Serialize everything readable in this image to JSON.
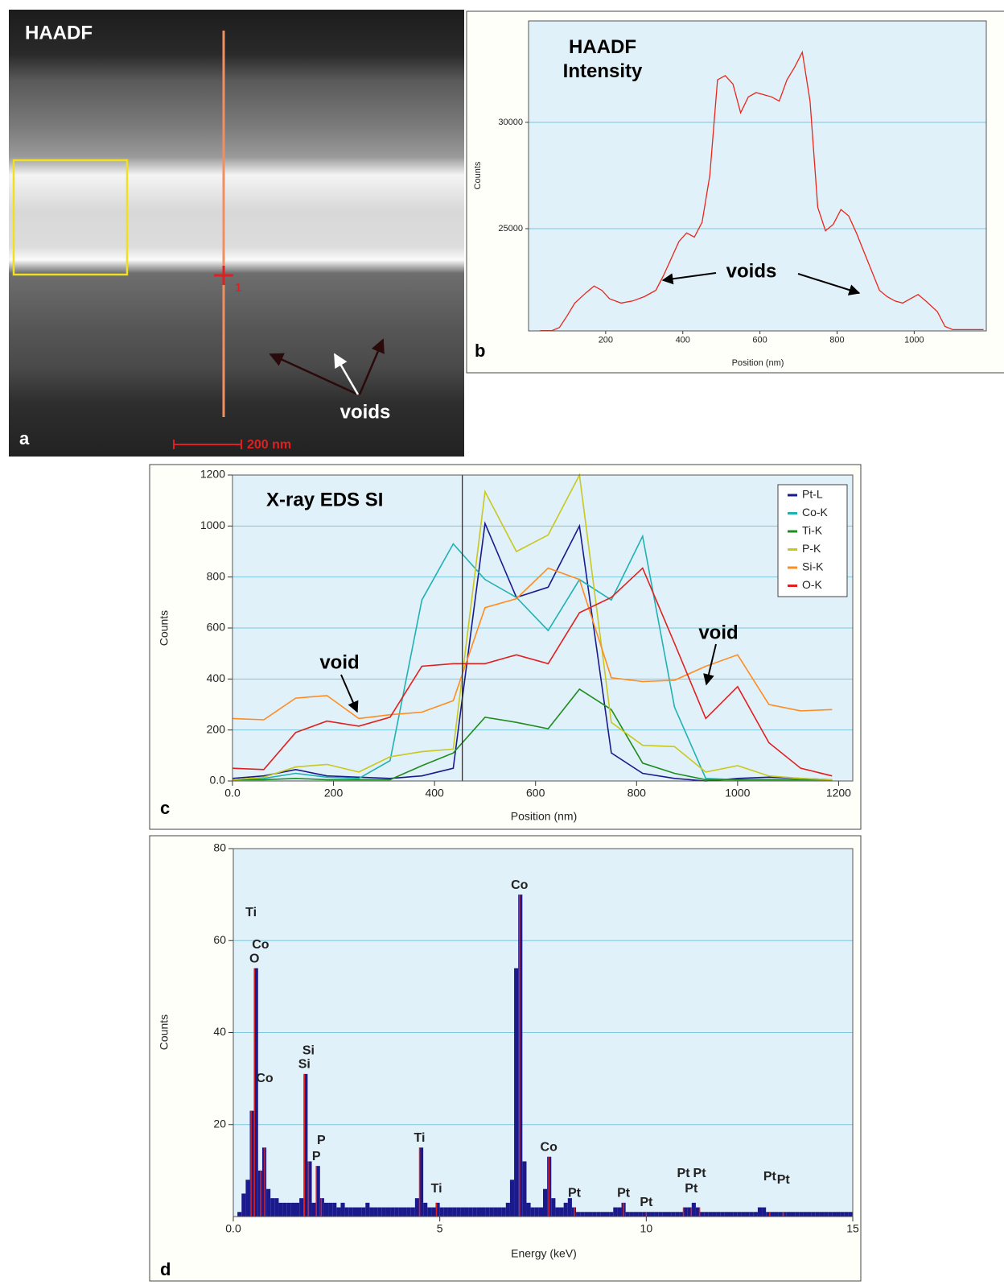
{
  "image": {
    "title": "HAADF",
    "panel": "a",
    "marker": "1",
    "scale_bar": "200 nm",
    "annotation": "voids"
  },
  "chart_data": [
    {
      "type": "line",
      "panel": "b",
      "title": "HAADF Intensity",
      "x_label": "Position (nm)",
      "y_label": "Counts",
      "annotations": [
        "voids"
      ],
      "color": "#e8261a",
      "grid": true,
      "xlim": [
        0,
        1187
      ],
      "ylim": [
        20190,
        34770
      ],
      "xticks": [
        200,
        400,
        600,
        800,
        1000
      ],
      "yticks": [
        25000,
        30000
      ],
      "x": [
        30,
        60,
        80,
        100,
        120,
        150,
        170,
        190,
        210,
        240,
        270,
        300,
        330,
        350,
        370,
        390,
        410,
        430,
        450,
        470,
        490,
        510,
        530,
        550,
        570,
        590,
        610,
        630,
        650,
        670,
        690,
        710,
        730,
        750,
        770,
        790,
        810,
        830,
        850,
        870,
        890,
        910,
        930,
        950,
        970,
        990,
        1010,
        1030,
        1060,
        1080,
        1100,
        1150,
        1180
      ],
      "values": [
        20200,
        20200,
        20350,
        20900,
        21500,
        22000,
        22300,
        22100,
        21700,
        21500,
        21600,
        21800,
        22100,
        22800,
        23600,
        24400,
        24800,
        24600,
        25300,
        27500,
        32000,
        32200,
        31800,
        30450,
        31200,
        31400,
        31300,
        31200,
        31000,
        32000,
        32600,
        33300,
        31000,
        26000,
        24900,
        25200,
        25900,
        25600,
        24800,
        23900,
        23000,
        22100,
        21800,
        21600,
        21500,
        21700,
        21900,
        21600,
        21100,
        20400,
        20250,
        20250,
        20250
      ]
    },
    {
      "type": "line",
      "panel": "c",
      "title": "X-ray EDS SI",
      "x_label": "Position (nm)",
      "y_label": "Counts",
      "annotations": [
        "void",
        "void"
      ],
      "grid": true,
      "legend": "upper right",
      "cursor": 455,
      "xlim": [
        0,
        1228
      ],
      "ylim": [
        0,
        1200
      ],
      "xticks": [
        {
          "value": 0,
          "label": "0.0"
        },
        200,
        400,
        600,
        800,
        1000,
        1200
      ],
      "yticks": [
        {
          "value": 0,
          "label": "0.0"
        },
        200,
        400,
        600,
        800,
        1000,
        1200
      ],
      "x": [
        0,
        62,
        125,
        187,
        250,
        312,
        375,
        437,
        500,
        562,
        625,
        687,
        750,
        812,
        875,
        937,
        1000,
        1062,
        1125,
        1187
      ],
      "series": [
        {
          "name": "Pt-L",
          "color": "#1a1a8c",
          "values": [
            10,
            20,
            45,
            20,
            15,
            10,
            20,
            50,
            1010,
            720,
            760,
            1000,
            110,
            30,
            10,
            0,
            10,
            15,
            10,
            5
          ]
        },
        {
          "name": "Co-K",
          "color": "#20b2b2",
          "values": [
            5,
            10,
            30,
            15,
            10,
            80,
            710,
            930,
            790,
            720,
            590,
            790,
            710,
            960,
            290,
            10,
            5,
            5,
            5,
            5
          ]
        },
        {
          "name": "Ti-K",
          "color": "#1e8c1e",
          "values": [
            5,
            5,
            10,
            5,
            5,
            5,
            60,
            110,
            250,
            230,
            205,
            360,
            280,
            70,
            30,
            5,
            5,
            5,
            5,
            5
          ]
        },
        {
          "name": "P-K",
          "color": "#c8c81e",
          "values": [
            5,
            15,
            55,
            65,
            35,
            95,
            115,
            125,
            1135,
            900,
            965,
            1200,
            230,
            140,
            135,
            35,
            60,
            20,
            10,
            5
          ]
        },
        {
          "name": "Si-K",
          "color": "#ff8c1e",
          "values": [
            245,
            240,
            325,
            335,
            245,
            260,
            270,
            315,
            680,
            715,
            835,
            790,
            405,
            390,
            395,
            450,
            495,
            300,
            275,
            280
          ]
        },
        {
          "name": "O-K",
          "color": "#e0201e",
          "values": [
            50,
            45,
            190,
            235,
            215,
            250,
            450,
            460,
            460,
            495,
            460,
            660,
            720,
            835,
            540,
            245,
            370,
            150,
            50,
            20
          ]
        }
      ]
    },
    {
      "type": "histogram",
      "panel": "d",
      "x_label": "Energy (keV)",
      "y_label": "Counts",
      "color": "#1a1a8c",
      "peak_color": "#e0201e",
      "grid": true,
      "xlim": [
        0,
        15
      ],
      "ylim": [
        0,
        80
      ],
      "xticks": [
        {
          "value": 0,
          "label": "0.0"
        },
        5,
        10,
        15
      ],
      "yticks": [
        20,
        40,
        60,
        80
      ],
      "bins": [
        0,
        0.1,
        0.2,
        0.3,
        0.4,
        0.5,
        0.6,
        0.7,
        0.8,
        0.9,
        1,
        1.1,
        1.2,
        1.3,
        1.4,
        1.5,
        1.6,
        1.7,
        1.8,
        1.9,
        2,
        2.1,
        2.2,
        2.3,
        2.4,
        2.5,
        2.6,
        2.7,
        2.8,
        2.9,
        3,
        3.1,
        3.2,
        3.3,
        3.4,
        3.5,
        3.6,
        3.7,
        3.8,
        3.9,
        4,
        4.1,
        4.2,
        4.3,
        4.4,
        4.5,
        4.6,
        4.7,
        4.8,
        4.9,
        5,
        5.1,
        5.2,
        5.3,
        5.4,
        5.5,
        5.6,
        5.7,
        5.8,
        5.9,
        6,
        6.1,
        6.2,
        6.3,
        6.4,
        6.5,
        6.6,
        6.7,
        6.8,
        6.9,
        7,
        7.1,
        7.2,
        7.3,
        7.4,
        7.5,
        7.6,
        7.7,
        7.8,
        7.9,
        8,
        8.1,
        8.2,
        8.3,
        8.4,
        8.5,
        8.6,
        8.7,
        8.8,
        8.9,
        9,
        9.1,
        9.2,
        9.3,
        9.4,
        9.5,
        9.6,
        9.7,
        9.8,
        9.9,
        10,
        10.1,
        10.2,
        10.3,
        10.4,
        10.5,
        10.6,
        10.7,
        10.8,
        10.9,
        11,
        11.1,
        11.2,
        11.3,
        11.4,
        11.5,
        11.6,
        11.7,
        11.8,
        11.9,
        12,
        12.1,
        12.2,
        12.3,
        12.4,
        12.5,
        12.6,
        12.7,
        12.8,
        12.9,
        13,
        13.1,
        13.2,
        13.3,
        13.4,
        13.5,
        13.6,
        13.7,
        13.8,
        13.9,
        14,
        14.1,
        14.2,
        14.3,
        14.4,
        14.5,
        14.6,
        14.7,
        14.8,
        14.9,
        15
      ],
      "values": [
        0,
        1,
        5,
        8,
        23,
        54,
        10,
        15,
        6,
        4,
        4,
        3,
        3,
        3,
        3,
        3,
        4,
        31,
        12,
        3,
        11,
        4,
        3,
        3,
        3,
        2,
        3,
        2,
        2,
        2,
        2,
        2,
        3,
        2,
        2,
        2,
        2,
        2,
        2,
        2,
        2,
        2,
        2,
        2,
        4,
        15,
        3,
        2,
        2,
        3,
        2,
        2,
        2,
        2,
        2,
        2,
        2,
        2,
        2,
        2,
        2,
        2,
        2,
        2,
        2,
        2,
        3,
        8,
        54,
        70,
        12,
        3,
        2,
        2,
        2,
        6,
        13,
        4,
        2,
        2,
        3,
        4,
        2,
        1,
        1,
        1,
        1,
        1,
        1,
        1,
        1,
        1,
        2,
        2,
        3,
        1,
        1,
        1,
        1,
        1,
        1,
        1,
        1,
        1,
        1,
        1,
        1,
        1,
        1,
        2,
        2,
        3,
        2,
        1,
        1,
        1,
        1,
        1,
        1,
        1,
        1,
        1,
        1,
        1,
        1,
        1,
        1,
        2,
        2,
        1,
        1,
        1,
        1,
        1,
        1,
        1,
        1,
        1,
        1,
        1,
        1,
        1,
        1,
        1,
        1,
        1,
        1,
        1,
        1,
        1
      ],
      "peaks": [
        {
          "label": "Ti",
          "energy": 0.43,
          "y": 66
        },
        {
          "label": "Co",
          "energy": 0.66,
          "y": 59
        },
        {
          "label": "O",
          "energy": 0.51,
          "y": 56
        },
        {
          "label": "Co",
          "energy": 0.76,
          "y": 30
        },
        {
          "label": "Si",
          "energy": 1.82,
          "y": 36
        },
        {
          "label": "Si",
          "energy": 1.72,
          "y": 33
        },
        {
          "label": "P",
          "energy": 2.13,
          "y": 16.5
        },
        {
          "label": "P",
          "energy": 2.01,
          "y": 13
        },
        {
          "label": "Ti",
          "energy": 4.51,
          "y": 17
        },
        {
          "label": "Ti",
          "energy": 4.92,
          "y": 6
        },
        {
          "label": "Co",
          "energy": 6.93,
          "y": 72
        },
        {
          "label": "Co",
          "energy": 7.64,
          "y": 15
        },
        {
          "label": "Pt",
          "energy": 8.26,
          "y": 5
        },
        {
          "label": "Pt",
          "energy": 9.45,
          "y": 5
        },
        {
          "label": "Pt",
          "energy": 10.0,
          "y": 3
        },
        {
          "label": "Pt",
          "energy": 10.9,
          "y": 9.3
        },
        {
          "label": "Pt",
          "energy": 11.29,
          "y": 9.3
        },
        {
          "label": "Pt",
          "energy": 11.09,
          "y": 6
        },
        {
          "label": "Pt",
          "energy": 12.99,
          "y": 8.6
        },
        {
          "label": "Pt",
          "energy": 13.32,
          "y": 7.9
        }
      ]
    }
  ]
}
